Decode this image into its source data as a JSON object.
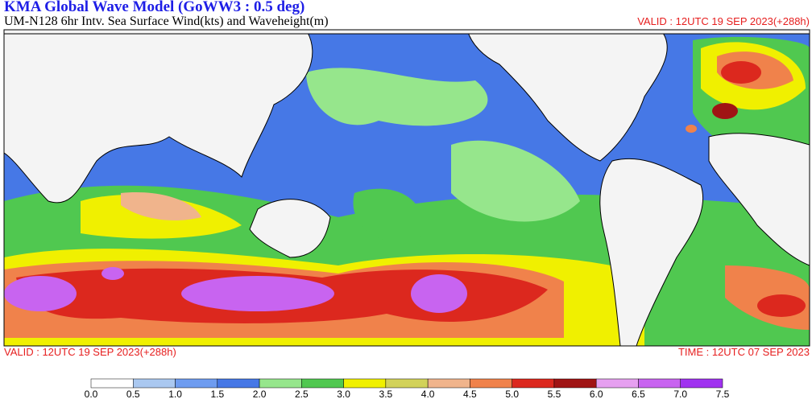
{
  "header": {
    "title": "KMA  Global Wave Model (GoWW3 : 0.5 deg)",
    "subtitle": "UM-N128  6hr Intv. Sea Surface Wind(kts) and Waveheight(m)",
    "valid": "VALID : 12UTC 19 SEP 2023(+288h)"
  },
  "footer": {
    "valid": "VALID : 12UTC 19 SEP 2023(+288h)",
    "time": "TIME : 12UTC 07 SEP 2023"
  },
  "colorbar": {
    "labels": [
      "0.0",
      "0.5",
      "1.0",
      "1.5",
      "2.0",
      "2.5",
      "3.0",
      "3.5",
      "4.0",
      "4.5",
      "5.0",
      "5.5",
      "6.0",
      "6.5",
      "7.0",
      "7.5"
    ],
    "colors": [
      "#ffffff",
      "#aac8f0",
      "#6e9cf0",
      "#4678e6",
      "#96e68c",
      "#50c850",
      "#f0f000",
      "#d2d25a",
      "#f0b48c",
      "#f0824b",
      "#dc281e",
      "#a01414",
      "#e6a0f0",
      "#c864f0",
      "#a032f0"
    ]
  }
}
